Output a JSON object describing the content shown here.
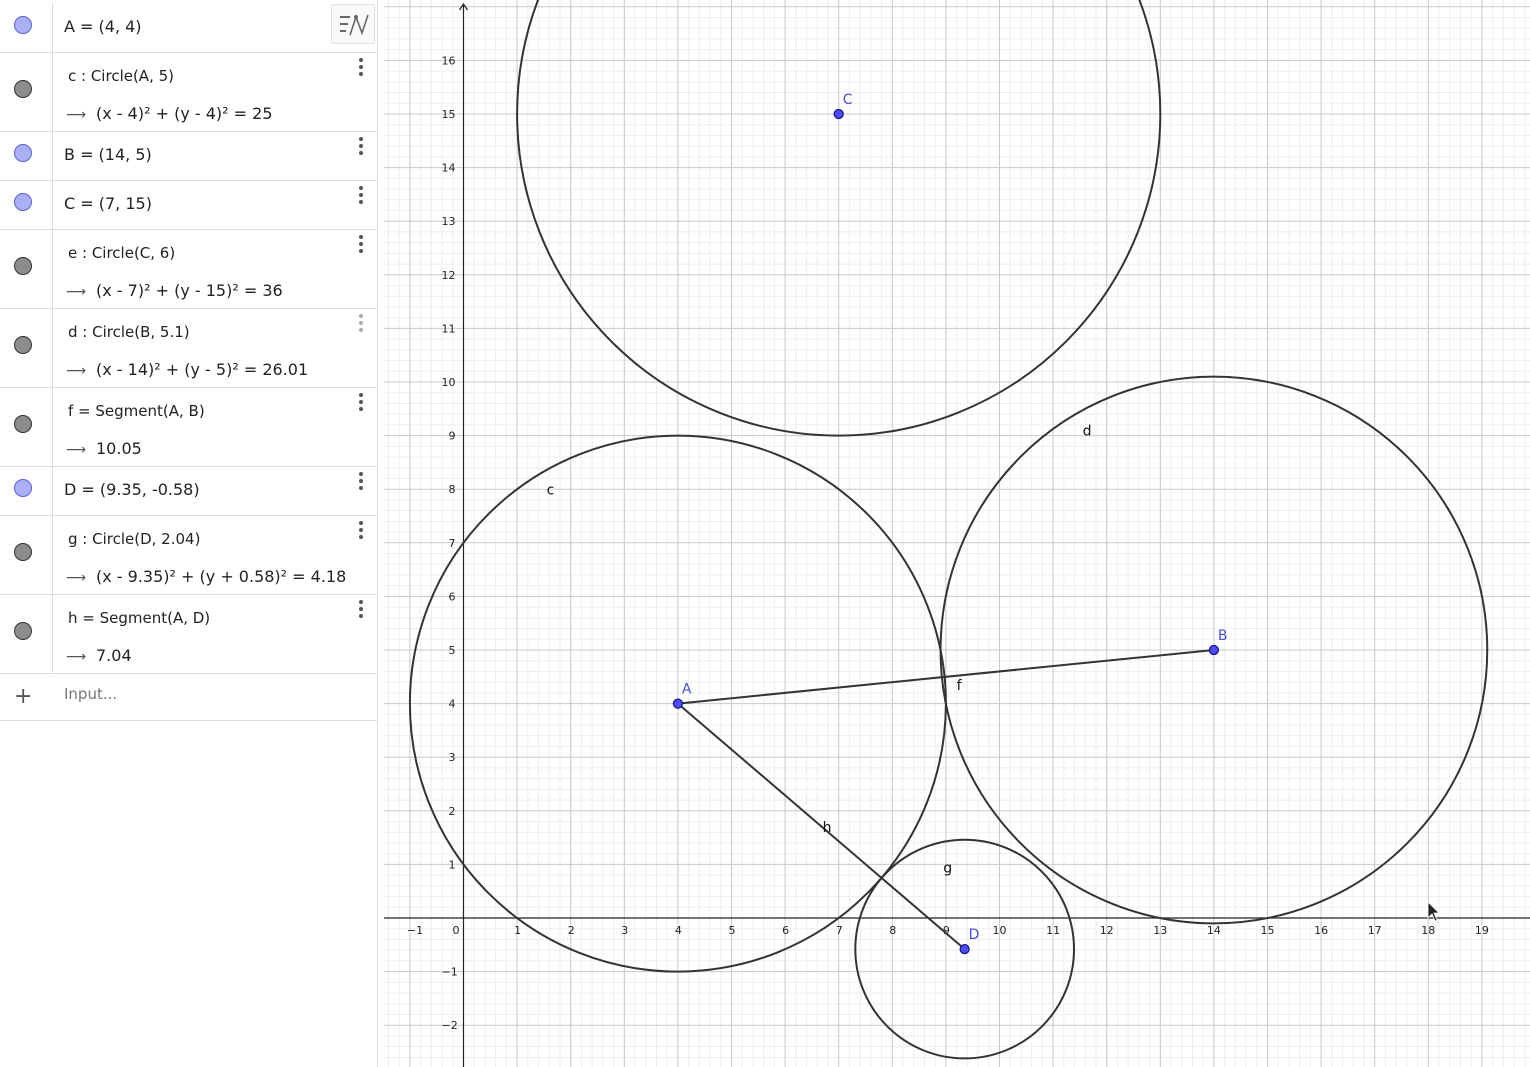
{
  "algebra": {
    "rows": [
      {
        "id": "A",
        "type": "point",
        "definition": "A = (4, 4)"
      },
      {
        "id": "c",
        "type": "conic",
        "definition": "c : Circle(A, 5)",
        "value": "(x - 4)² + (y - 4)² = 25"
      },
      {
        "id": "B",
        "type": "point",
        "definition": "B = (14, 5)"
      },
      {
        "id": "C",
        "type": "point",
        "definition": "C = (7, 15)"
      },
      {
        "id": "e",
        "type": "conic",
        "definition": "e : Circle(C, 6)",
        "value": "(x - 7)² + (y - 15)² = 36"
      },
      {
        "id": "d",
        "type": "conic",
        "definition": "d : Circle(B, 5.1)",
        "value": "(x - 14)² + (y - 5)² = 26.01"
      },
      {
        "id": "f",
        "type": "segment",
        "definition": "f = Segment(A, B)",
        "value": "10.05"
      },
      {
        "id": "D",
        "type": "point",
        "definition": "D = (9.35, -0.58)"
      },
      {
        "id": "g",
        "type": "conic",
        "definition": "g : Circle(D, 2.04)",
        "value": "(x - 9.35)² + (y + 0.58)² = 4.18"
      },
      {
        "id": "h",
        "type": "segment",
        "definition": "h = Segment(A, D)",
        "value": "7.04"
      }
    ],
    "input_placeholder": "Input..."
  },
  "graphics": {
    "x_ticks": [
      "−1",
      "0",
      "1",
      "2",
      "3",
      "4",
      "5",
      "6",
      "7",
      "8",
      "9",
      "10",
      "11",
      "12",
      "13",
      "14",
      "15",
      "16",
      "17",
      "18",
      "19"
    ],
    "y_ticks": [
      "−2",
      "−1",
      "1",
      "2",
      "3",
      "4",
      "5",
      "6",
      "7",
      "8",
      "9",
      "10",
      "11",
      "12",
      "13",
      "14",
      "15",
      "16"
    ],
    "points": [
      {
        "name": "A",
        "x": 4,
        "y": 4
      },
      {
        "name": "B",
        "x": 14,
        "y": 5
      },
      {
        "name": "C",
        "x": 7,
        "y": 15
      },
      {
        "name": "D",
        "x": 9.35,
        "y": -0.58
      }
    ],
    "circles": [
      {
        "name": "c",
        "cx": 4,
        "cy": 4,
        "r": 5,
        "show_label": true
      },
      {
        "name": "e",
        "cx": 7,
        "cy": 15,
        "r": 6,
        "show_label": false
      },
      {
        "name": "d",
        "cx": 14,
        "cy": 5,
        "r": 5.1,
        "show_label": true
      },
      {
        "name": "g",
        "cx": 9.35,
        "cy": -0.58,
        "r": 2.04,
        "show_label": true
      }
    ],
    "segments": [
      {
        "name": "f",
        "from": "A",
        "to": "B"
      },
      {
        "name": "h",
        "from": "A",
        "to": "D"
      }
    ],
    "colors": {
      "point_fill": "#4c4cff",
      "point_stroke": "#1a1a80",
      "object": "#333333",
      "label_point": "#4a4adf"
    }
  }
}
